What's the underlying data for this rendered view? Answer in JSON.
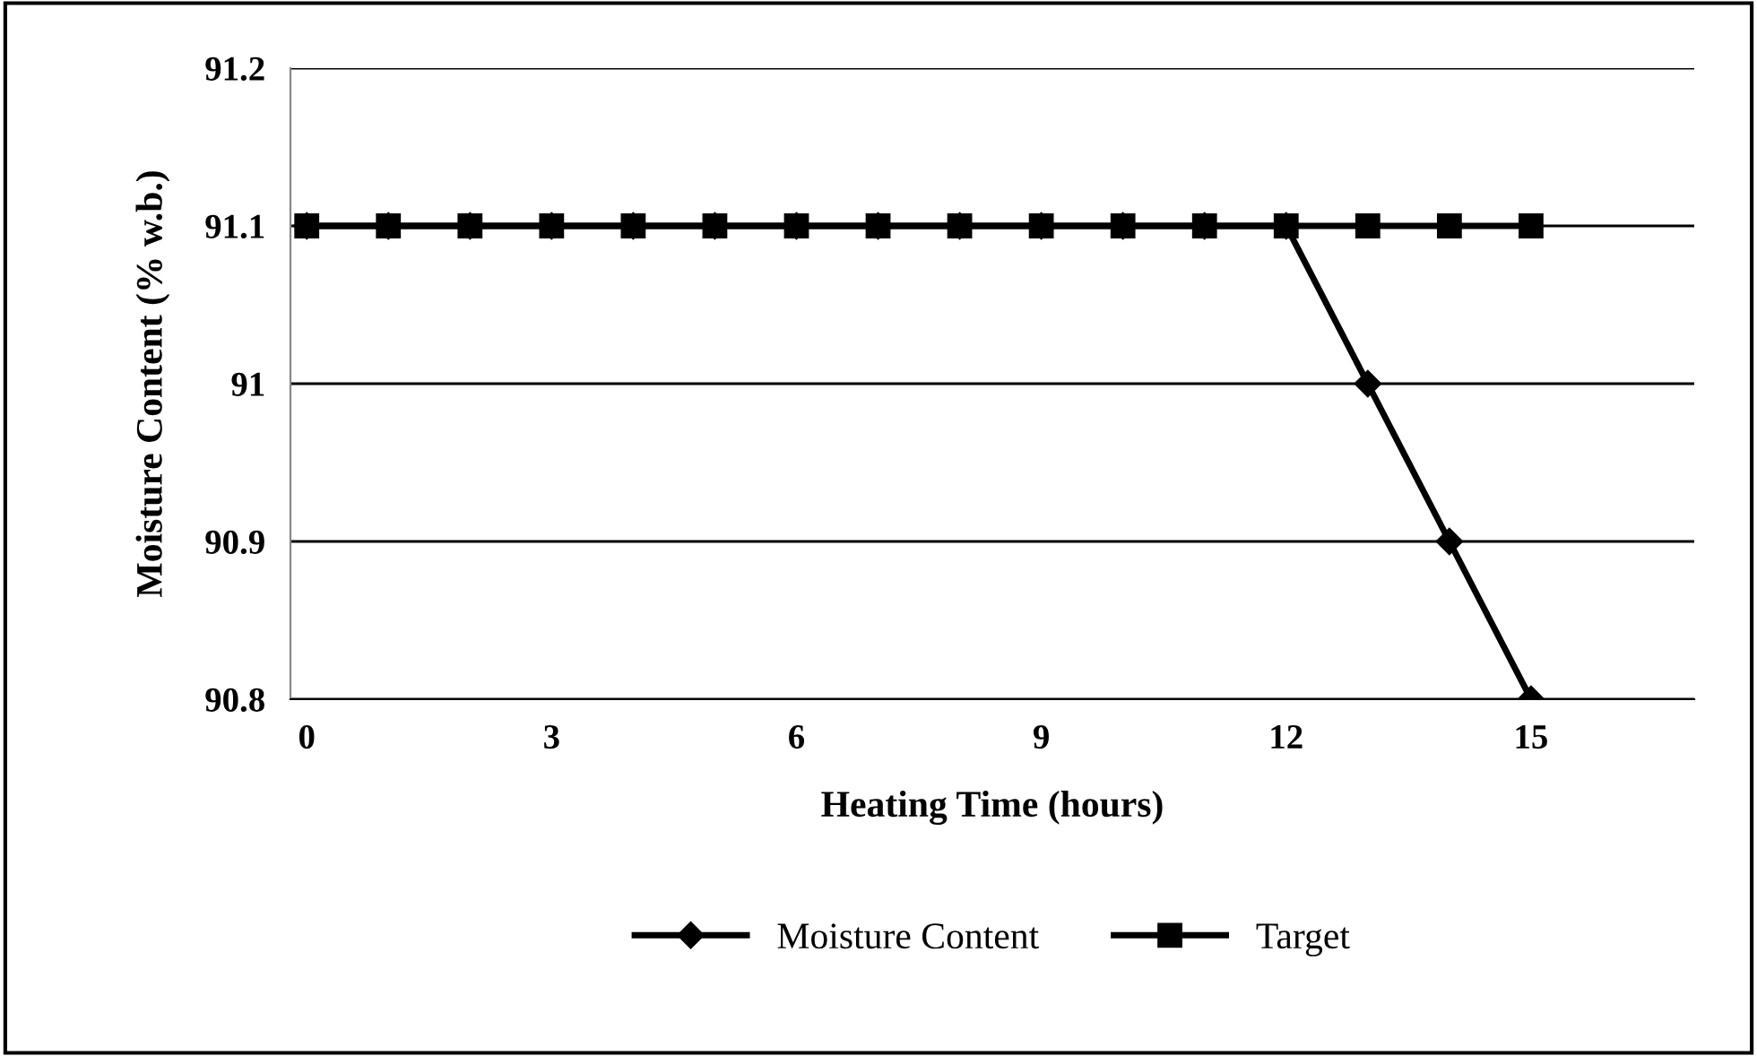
{
  "chart_data": {
    "type": "line",
    "xlabel": "Heating Time (hours)",
    "ylabel": "Moisture Content (% w.b.)",
    "x": [
      0,
      1,
      2,
      3,
      4,
      5,
      6,
      7,
      8,
      9,
      10,
      11,
      12,
      13,
      14,
      15
    ],
    "series": [
      {
        "name": "Moisture Content",
        "color": "#000000",
        "marker": "diamond",
        "values": [
          91.1,
          91.1,
          91.1,
          91.1,
          91.1,
          91.1,
          91.1,
          91.1,
          91.1,
          91.1,
          91.1,
          91.1,
          91.1,
          91.0,
          90.9,
          90.8
        ]
      },
      {
        "name": "Target",
        "color": "#000000",
        "marker": "square",
        "values": [
          91.1,
          91.1,
          91.1,
          91.1,
          91.1,
          91.1,
          91.1,
          91.1,
          91.1,
          91.1,
          91.1,
          91.1,
          91.1,
          91.1,
          91.1,
          91.1
        ]
      }
    ],
    "xlim": [
      -0.2,
      17
    ],
    "xticks": [
      0,
      3,
      6,
      9,
      12,
      15
    ],
    "ylim": [
      90.8,
      91.2
    ],
    "yticks": [
      90.8,
      90.9,
      91,
      91.1,
      91.2
    ],
    "grid": "y",
    "legend": "bottom",
    "line_style": "solid"
  }
}
